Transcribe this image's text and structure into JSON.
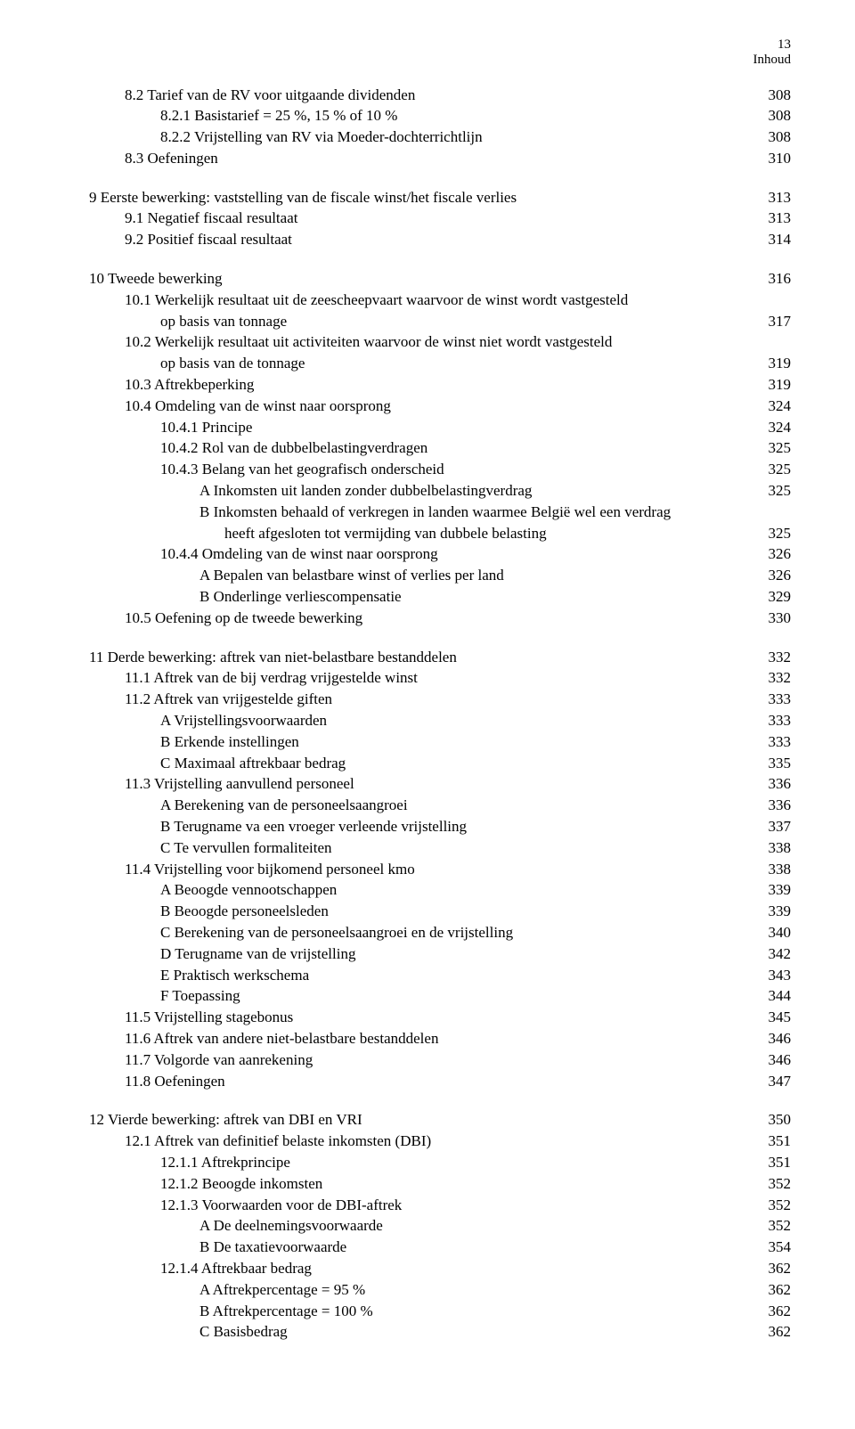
{
  "header": {
    "page_num": "13",
    "label": "Inhoud"
  },
  "toc": [
    {
      "lvl": 1,
      "text": "8.2 Tarief van de RV voor uitgaande dividenden",
      "page": "308"
    },
    {
      "lvl": 2,
      "text": "8.2.1 Basistarief = 25 %, 15 % of 10 %",
      "page": "308"
    },
    {
      "lvl": 2,
      "text": "8.2.2 Vrijstelling van RV via Moeder-dochterrichtlijn",
      "page": "308"
    },
    {
      "lvl": 1,
      "text": "8.3 Oefeningen",
      "page": "310"
    },
    {
      "gap": true
    },
    {
      "lvl": 0,
      "text": "9 Eerste bewerking: vaststelling van de fiscale winst/het fiscale verlies",
      "page": "313"
    },
    {
      "lvl": 1,
      "text": "9.1 Negatief fiscaal resultaat",
      "page": "313"
    },
    {
      "lvl": 1,
      "text": "9.2 Positief fiscaal resultaat",
      "page": "314"
    },
    {
      "gap": true
    },
    {
      "lvl": 0,
      "text": "10 Tweede bewerking",
      "page": "316"
    },
    {
      "lvl": 1,
      "text": "10.1 Werkelijk resultaat uit de zeescheepvaart waarvoor de winst wordt vastgesteld",
      "page": ""
    },
    {
      "lvl": 2,
      "text": "op basis van tonnage",
      "page": "317"
    },
    {
      "lvl": 1,
      "text": "10.2 Werkelijk resultaat uit activiteiten waarvoor de winst niet wordt vastgesteld",
      "page": ""
    },
    {
      "lvl": 2,
      "text": "op basis van de tonnage",
      "page": "319"
    },
    {
      "lvl": 1,
      "text": "10.3 Aftrekbeperking",
      "page": "319"
    },
    {
      "lvl": 1,
      "text": "10.4 Omdeling van de winst naar oorsprong",
      "page": "324"
    },
    {
      "lvl": 2,
      "text": "10.4.1 Principe",
      "page": "324"
    },
    {
      "lvl": 2,
      "text": "10.4.2 Rol van de dubbelbelastingverdragen",
      "page": "325"
    },
    {
      "lvl": 2,
      "text": "10.4.3 Belang van het geografisch onderscheid",
      "page": "325"
    },
    {
      "lvl": 3,
      "text": "A Inkomsten uit landen zonder dubbelbelastingverdrag",
      "page": "325"
    },
    {
      "lvl": 3,
      "text": "B Inkomsten behaald of verkregen in landen waarmee België wel een verdrag",
      "page": ""
    },
    {
      "lvl": 4,
      "text": "heeft afgesloten tot vermijding van dubbele belasting",
      "page": "325"
    },
    {
      "lvl": 2,
      "text": "10.4.4 Omdeling van de winst naar oorsprong",
      "page": "326"
    },
    {
      "lvl": 3,
      "text": "A Bepalen van belastbare winst of verlies per land",
      "page": "326"
    },
    {
      "lvl": 3,
      "text": "B Onderlinge verliescompensatie",
      "page": "329"
    },
    {
      "lvl": 1,
      "text": "10.5 Oefening op de tweede bewerking",
      "page": "330"
    },
    {
      "gap": true
    },
    {
      "lvl": 0,
      "text": "11 Derde bewerking: aftrek van niet-belastbare bestanddelen",
      "page": "332"
    },
    {
      "lvl": 1,
      "text": "11.1 Aftrek van de bij verdrag vrijgestelde winst",
      "page": "332"
    },
    {
      "lvl": 1,
      "text": "11.2 Aftrek van vrijgestelde giften",
      "page": "333"
    },
    {
      "lvl": 2,
      "text": "A  Vrijstellingsvoorwaarden",
      "page": "333"
    },
    {
      "lvl": 2,
      "text": "B  Erkende instellingen",
      "page": "333"
    },
    {
      "lvl": 2,
      "text": "C  Maximaal aftrekbaar bedrag",
      "page": "335"
    },
    {
      "lvl": 1,
      "text": "11.3 Vrijstelling aanvullend personeel",
      "page": "336"
    },
    {
      "lvl": 2,
      "text": "A  Berekening van de personeelsaangroei",
      "page": "336"
    },
    {
      "lvl": 2,
      "text": "B  Terugname va een vroeger verleende vrijstelling",
      "page": "337"
    },
    {
      "lvl": 2,
      "text": "C  Te vervullen formaliteiten",
      "page": "338"
    },
    {
      "lvl": 1,
      "text": "11.4 Vrijstelling voor bijkomend personeel kmo",
      "page": "338"
    },
    {
      "lvl": 2,
      "text": "A  Beoogde vennootschappen",
      "page": "339"
    },
    {
      "lvl": 2,
      "text": "B  Beoogde personeelsleden",
      "page": "339"
    },
    {
      "lvl": 2,
      "text": "C  Berekening van de personeelsaangroei en de vrijstelling",
      "page": "340"
    },
    {
      "lvl": 2,
      "text": "D  Terugname van de vrijstelling",
      "page": "342"
    },
    {
      "lvl": 2,
      "text": "E  Praktisch werkschema",
      "page": "343"
    },
    {
      "lvl": 2,
      "text": "F  Toepassing",
      "page": "344"
    },
    {
      "lvl": 1,
      "text": "11.5 Vrijstelling stagebonus",
      "page": "345"
    },
    {
      "lvl": 1,
      "text": "11.6 Aftrek van andere niet-belastbare bestanddelen",
      "page": "346"
    },
    {
      "lvl": 1,
      "text": "11.7 Volgorde van aanrekening",
      "page": "346"
    },
    {
      "lvl": 1,
      "text": "11.8 Oefeningen",
      "page": "347"
    },
    {
      "gap": true
    },
    {
      "lvl": 0,
      "text": "12 Vierde bewerking: aftrek van DBI en VRI",
      "page": "350"
    },
    {
      "lvl": 1,
      "text": "12.1 Aftrek van definitief belaste inkomsten (DBI)",
      "page": "351"
    },
    {
      "lvl": 2,
      "text": "12.1.1 Aftrekprincipe",
      "page": "351"
    },
    {
      "lvl": 2,
      "text": "12.1.2 Beoogde inkomsten",
      "page": "352"
    },
    {
      "lvl": 2,
      "text": "12.1.3 Voorwaarden voor de DBI-aftrek",
      "page": "352"
    },
    {
      "lvl": 3,
      "text": "A De deelnemingsvoorwaarde",
      "page": "352"
    },
    {
      "lvl": 3,
      "text": "B De taxatievoorwaarde",
      "page": "354"
    },
    {
      "lvl": 2,
      "text": "12.1.4 Aftrekbaar bedrag",
      "page": "362"
    },
    {
      "lvl": 3,
      "text": "A Aftrekpercentage = 95 %",
      "page": "362"
    },
    {
      "lvl": 3,
      "text": "B Aftrekpercentage = 100 %",
      "page": "362"
    },
    {
      "lvl": 3,
      "text": "C Basisbedrag",
      "page": "362"
    }
  ]
}
